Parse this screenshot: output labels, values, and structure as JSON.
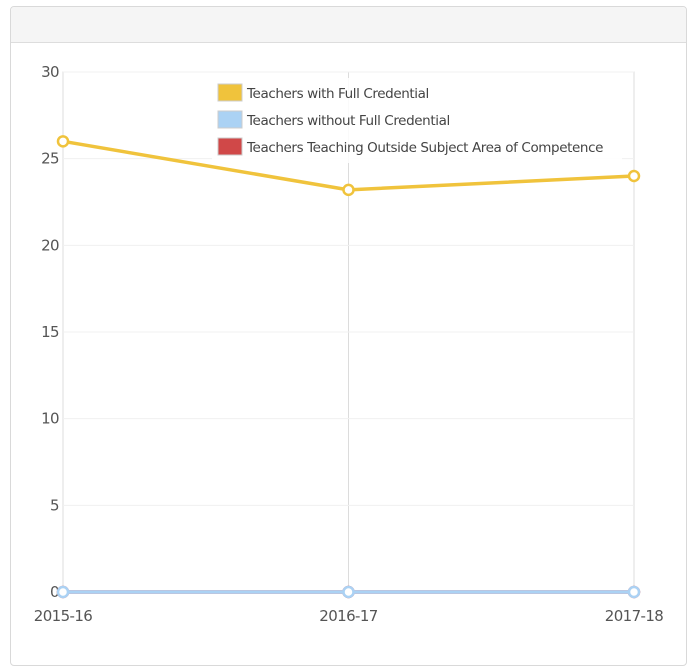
{
  "chart_data": {
    "type": "line",
    "categories": [
      "2015-16",
      "2016-17",
      "2017-18"
    ],
    "series": [
      {
        "name": "Teachers with Full Credential",
        "values": [
          26,
          23.2,
          24
        ],
        "color": "#f0c33c"
      },
      {
        "name": "Teachers without Full Credential",
        "values": [
          0,
          0,
          0
        ],
        "color": "#abd2f4"
      },
      {
        "name": "Teachers Teaching Outside Subject Area of Competence",
        "values": [
          0,
          0,
          0
        ],
        "color": "#d04848"
      }
    ],
    "ylim": [
      0,
      30
    ],
    "yticks": [
      0,
      5,
      10,
      15,
      20,
      25,
      30
    ],
    "grid": true,
    "legend_position": "top-center"
  }
}
